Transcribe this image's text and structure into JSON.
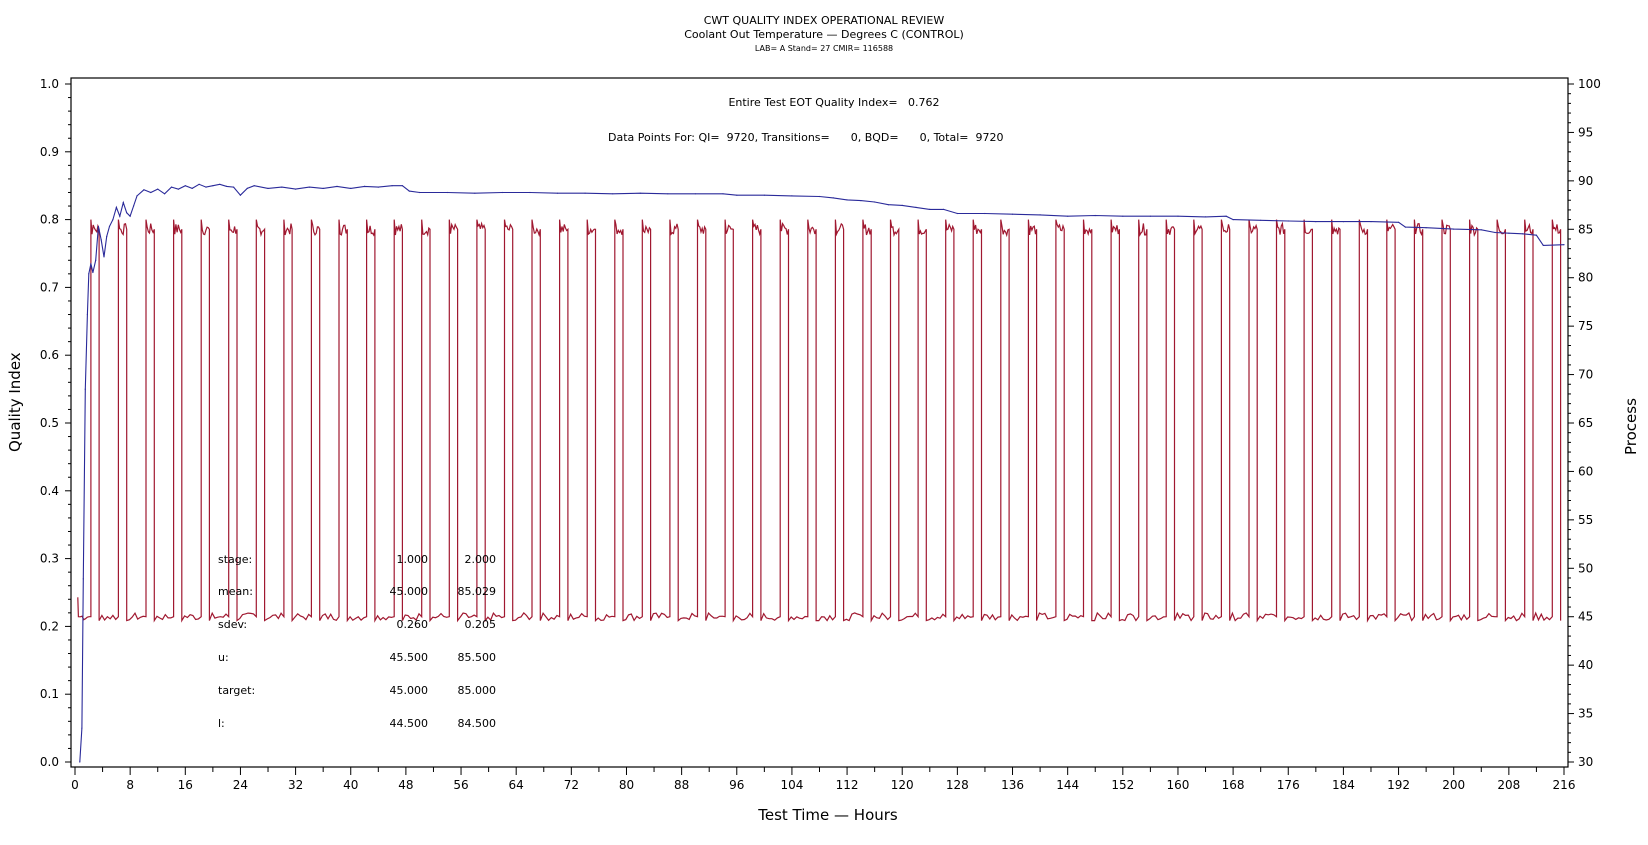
{
  "chart_data": {
    "type": "line",
    "title": "CWT QUALITY INDEX OPERATIONAL REVIEW",
    "subtitle": "Coolant Out Temperature — Degrees C (CONTROL)",
    "subtitle2": "LAB= A Stand= 27 CMIR= 116588",
    "annotations": {
      "quality_index": "Entire Test EOT Quality Index=   0.762",
      "data_points": "Data Points For: QI=  9720, Transitions=      0, BQD=      0, Total=  9720"
    },
    "xlabel": "Test Time — Hours",
    "ylabel": "Quality Index",
    "y2label": "Process",
    "xlim": [
      0,
      216
    ],
    "ylim": [
      0.0,
      1.0
    ],
    "y2lim": [
      30,
      100
    ],
    "xticks": [
      "0",
      "8",
      "16",
      "24",
      "32",
      "40",
      "48",
      "56",
      "64",
      "72",
      "80",
      "88",
      "96",
      "104",
      "112",
      "120",
      "128",
      "136",
      "144",
      "152",
      "160",
      "168",
      "176",
      "184",
      "192",
      "200",
      "208",
      "216"
    ],
    "yticks": [
      "0.0",
      "0.1",
      "0.2",
      "0.3",
      "0.4",
      "0.5",
      "0.6",
      "0.7",
      "0.8",
      "0.9",
      "1.0"
    ],
    "y2ticks": [
      "30",
      "35",
      "40",
      "45",
      "50",
      "55",
      "60",
      "65",
      "70",
      "75",
      "80",
      "85",
      "90",
      "95",
      "100"
    ],
    "grid": false,
    "series": [
      {
        "name": "Quality Index",
        "axis": "left",
        "color": "#2a2a9a",
        "x": [
          0.7,
          1.0,
          1.2,
          1.5,
          1.8,
          2.0,
          2.3,
          2.6,
          3.0,
          3.4,
          3.8,
          4.2,
          4.6,
          5.0,
          5.5,
          6.0,
          6.5,
          7.0,
          7.5,
          8.0,
          8.5,
          9.0,
          10.0,
          11.0,
          12.0,
          13.0,
          14.0,
          15.0,
          16.0,
          17.0,
          18.0,
          19.0,
          20.0,
          21.0,
          22.0,
          23.0,
          24.0,
          25.0,
          26.0,
          28.0,
          30.0,
          32.0,
          34.0,
          36.0,
          38.0,
          40.0,
          42.0,
          44.0,
          46.0,
          47.5,
          48.5,
          50.0,
          54.0,
          58.0,
          62.0,
          66.0,
          70.0,
          74.0,
          78.0,
          82.0,
          86.0,
          90.0,
          94.0,
          96.0,
          100.0,
          104.0,
          108.0,
          110.0,
          112.0,
          114.0,
          116.0,
          118.0,
          120.0,
          122.0,
          124.0,
          126.0,
          128.0,
          132.0,
          136.0,
          140.0,
          144.0,
          148.0,
          152.0,
          156.0,
          160.0,
          164.0,
          167.0,
          168.0,
          172.0,
          176.0,
          180.0,
          184.0,
          188.0,
          192.0,
          193.0,
          196.0,
          200.0,
          204.0,
          206.0,
          208.0,
          210.0,
          212.0,
          213.0,
          216.0
        ],
        "values": [
          0.0,
          0.05,
          0.27,
          0.55,
          0.66,
          0.72,
          0.735,
          0.722,
          0.74,
          0.79,
          0.77,
          0.745,
          0.775,
          0.79,
          0.8,
          0.818,
          0.805,
          0.825,
          0.81,
          0.805,
          0.82,
          0.835,
          0.844,
          0.84,
          0.845,
          0.838,
          0.848,
          0.845,
          0.85,
          0.846,
          0.852,
          0.848,
          0.85,
          0.852,
          0.849,
          0.848,
          0.836,
          0.846,
          0.85,
          0.846,
          0.848,
          0.845,
          0.848,
          0.846,
          0.849,
          0.846,
          0.849,
          0.848,
          0.85,
          0.85,
          0.842,
          0.84,
          0.84,
          0.839,
          0.84,
          0.84,
          0.839,
          0.839,
          0.838,
          0.839,
          0.838,
          0.838,
          0.838,
          0.836,
          0.836,
          0.835,
          0.834,
          0.832,
          0.829,
          0.828,
          0.826,
          0.822,
          0.821,
          0.818,
          0.815,
          0.815,
          0.809,
          0.809,
          0.808,
          0.807,
          0.805,
          0.806,
          0.805,
          0.805,
          0.805,
          0.804,
          0.805,
          0.8,
          0.799,
          0.798,
          0.797,
          0.797,
          0.797,
          0.796,
          0.789,
          0.788,
          0.786,
          0.785,
          0.781,
          0.78,
          0.779,
          0.777,
          0.762,
          0.763
        ]
      },
      {
        "name": "Coolant Out Temperature (Process)",
        "axis": "right",
        "color": "#a01830",
        "pattern": "square wave",
        "period_hours": 4,
        "low_value": 45.0,
        "high_value": 85.0,
        "first_rise_hour": 2.3,
        "high_duration_hours": 1.2,
        "start_value": 47.0,
        "end_hour": 216
      }
    ],
    "stats_table": {
      "rows": [
        {
          "label": "stage:",
          "col1": "1.000",
          "col2": "2.000"
        },
        {
          "label": "mean:",
          "col1": "45.000",
          "col2": "85.029"
        },
        {
          "label": "sdev:",
          "col1": "0.260",
          "col2": "0.205"
        },
        {
          "label": "u:",
          "col1": "45.500",
          "col2": "85.500"
        },
        {
          "label": "target:",
          "col1": "45.000",
          "col2": "85.000"
        },
        {
          "label": "l:",
          "col1": "44.500",
          "col2": "84.500"
        }
      ]
    }
  }
}
